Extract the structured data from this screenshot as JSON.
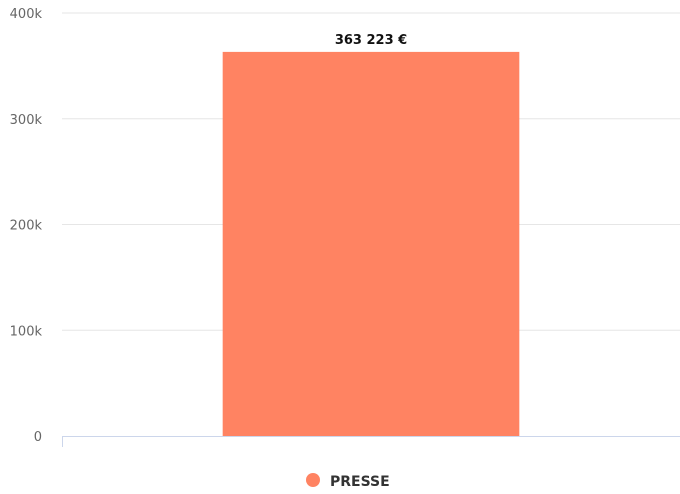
{
  "chart_data": {
    "type": "bar",
    "categories": [
      "PRESSE"
    ],
    "series": [
      {
        "name": "PRESSE",
        "values": [
          363223
        ],
        "color": "#ff8362"
      }
    ],
    "data_labels": [
      "363 223 €"
    ],
    "y_ticks": [
      {
        "value": 0,
        "label": "0"
      },
      {
        "value": 100000,
        "label": "100k"
      },
      {
        "value": 200000,
        "label": "200k"
      },
      {
        "value": 300000,
        "label": "300k"
      },
      {
        "value": 400000,
        "label": "400k"
      }
    ],
    "ylim": [
      0,
      400000
    ],
    "grid": true,
    "legend_position": "bottom-center",
    "title": "",
    "xlabel": "",
    "ylabel": ""
  }
}
